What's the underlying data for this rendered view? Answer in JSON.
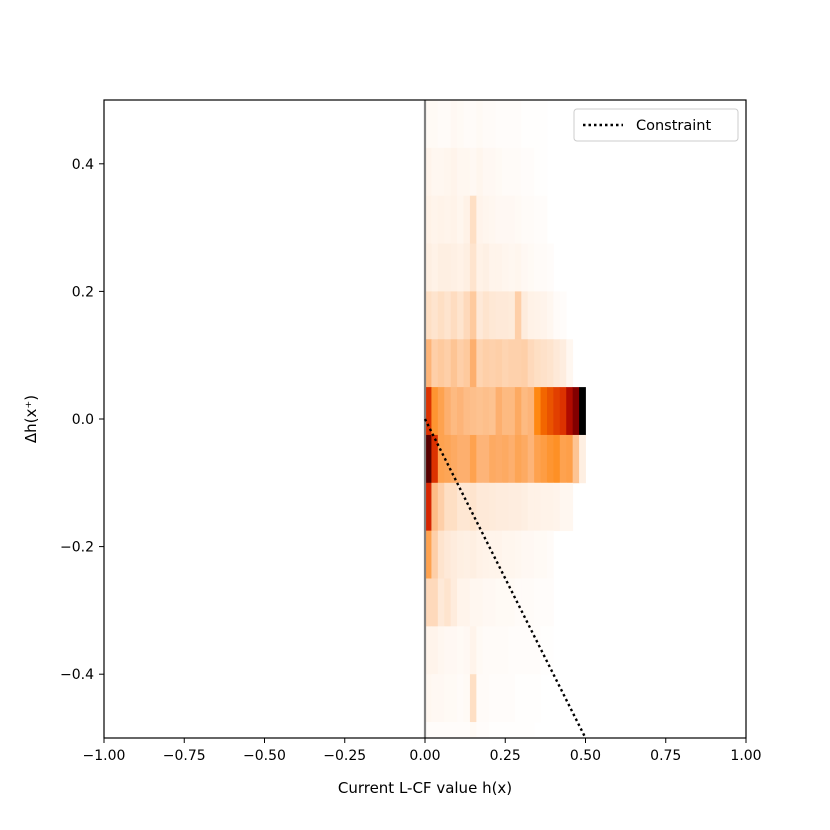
{
  "chart_data": {
    "type": "heatmap",
    "title": "",
    "xlabel": "Current L-CF value h(x)",
    "ylabel": "Δh(x⁺)",
    "xlim": [
      -1.0,
      1.0
    ],
    "ylim": [
      -0.5,
      0.5
    ],
    "x_ticks": [
      -1.0,
      -0.75,
      -0.5,
      -0.25,
      0.0,
      0.25,
      0.5,
      0.75,
      1.0
    ],
    "x_tick_labels": [
      "−1.00",
      "−0.75",
      "−0.50",
      "−0.25",
      "0.00",
      "0.25",
      "0.50",
      "0.75",
      "1.00"
    ],
    "y_ticks": [
      0.4,
      0.2,
      0.0,
      -0.2,
      -0.4
    ],
    "y_tick_labels": [
      "0.4",
      "0.2",
      "0.0",
      "−0.2",
      "−0.4"
    ],
    "colormap": "gist_heat_r",
    "bin_x_start": 0.0,
    "bin_width": 0.02,
    "bin_y_edges": [
      0.5,
      0.425,
      0.35,
      0.275,
      0.2,
      0.125,
      0.05,
      -0.025,
      -0.1,
      -0.175,
      -0.25,
      -0.325,
      -0.4,
      -0.475,
      -0.5
    ],
    "density_rows": [
      [
        0.04,
        0.04,
        0.03,
        0.03,
        0.05,
        0.04,
        0.03,
        0.03,
        0.04,
        0.03,
        0.03,
        0.02,
        0.02,
        0.02,
        0.02,
        0.01,
        0.01,
        0.01,
        0.01,
        0.0,
        0.0,
        0.0,
        0.0,
        0.0,
        0.0
      ],
      [
        0.08,
        0.06,
        0.06,
        0.07,
        0.08,
        0.06,
        0.06,
        0.05,
        0.07,
        0.05,
        0.05,
        0.04,
        0.03,
        0.03,
        0.03,
        0.02,
        0.02,
        0.01,
        0.01,
        0.0,
        0.0,
        0.0,
        0.0,
        0.0,
        0.0
      ],
      [
        0.1,
        0.08,
        0.09,
        0.08,
        0.09,
        0.07,
        0.1,
        0.22,
        0.08,
        0.07,
        0.06,
        0.05,
        0.05,
        0.05,
        0.04,
        0.03,
        0.03,
        0.02,
        0.02,
        0.0,
        0.0,
        0.0,
        0.0,
        0.0,
        0.0
      ],
      [
        0.12,
        0.1,
        0.12,
        0.12,
        0.11,
        0.1,
        0.12,
        0.2,
        0.1,
        0.11,
        0.08,
        0.08,
        0.07,
        0.06,
        0.07,
        0.05,
        0.04,
        0.03,
        0.03,
        0.02,
        0.0,
        0.0,
        0.0,
        0.0,
        0.0
      ],
      [
        0.22,
        0.2,
        0.22,
        0.2,
        0.23,
        0.2,
        0.24,
        0.3,
        0.16,
        0.2,
        0.17,
        0.16,
        0.16,
        0.15,
        0.28,
        0.14,
        0.1,
        0.09,
        0.08,
        0.06,
        0.03,
        0.02,
        0.0,
        0.0,
        0.0
      ],
      [
        0.38,
        0.28,
        0.3,
        0.28,
        0.32,
        0.28,
        0.3,
        0.4,
        0.26,
        0.28,
        0.27,
        0.28,
        0.26,
        0.27,
        0.27,
        0.28,
        0.24,
        0.22,
        0.21,
        0.2,
        0.16,
        0.13,
        0.06,
        0.0,
        0.0
      ],
      [
        0.7,
        0.5,
        0.45,
        0.4,
        0.36,
        0.38,
        0.35,
        0.34,
        0.33,
        0.34,
        0.33,
        0.4,
        0.36,
        0.36,
        0.42,
        0.36,
        0.38,
        0.55,
        0.62,
        0.65,
        0.68,
        0.7,
        0.8,
        0.88,
        1.0
      ],
      [
        0.92,
        0.7,
        0.45,
        0.44,
        0.42,
        0.4,
        0.4,
        0.45,
        0.38,
        0.38,
        0.42,
        0.41,
        0.42,
        0.4,
        0.44,
        0.42,
        0.38,
        0.45,
        0.47,
        0.5,
        0.52,
        0.45,
        0.46,
        0.32,
        0.12
      ],
      [
        0.72,
        0.35,
        0.28,
        0.22,
        0.22,
        0.18,
        0.18,
        0.2,
        0.16,
        0.16,
        0.15,
        0.14,
        0.14,
        0.13,
        0.13,
        0.12,
        0.1,
        0.1,
        0.09,
        0.09,
        0.08,
        0.06,
        0.06,
        0.0,
        0.0
      ],
      [
        0.45,
        0.28,
        0.2,
        0.16,
        0.14,
        0.12,
        0.11,
        0.12,
        0.1,
        0.09,
        0.08,
        0.08,
        0.07,
        0.07,
        0.06,
        0.05,
        0.05,
        0.04,
        0.04,
        0.03,
        0.0,
        0.0,
        0.0,
        0.0,
        0.0
      ],
      [
        0.24,
        0.24,
        0.16,
        0.2,
        0.14,
        0.08,
        0.08,
        0.06,
        0.06,
        0.05,
        0.05,
        0.04,
        0.04,
        0.04,
        0.03,
        0.03,
        0.03,
        0.02,
        0.02,
        0.02,
        0.0,
        0.0,
        0.0,
        0.0,
        0.0
      ],
      [
        0.08,
        0.08,
        0.06,
        0.05,
        0.05,
        0.04,
        0.05,
        0.08,
        0.04,
        0.03,
        0.03,
        0.03,
        0.03,
        0.02,
        0.02,
        0.02,
        0.02,
        0.02,
        0.01,
        0.01,
        0.0,
        0.0,
        0.0,
        0.0,
        0.0
      ],
      [
        0.06,
        0.05,
        0.05,
        0.04,
        0.04,
        0.03,
        0.04,
        0.22,
        0.03,
        0.03,
        0.02,
        0.02,
        0.02,
        0.02,
        0.01,
        0.01,
        0.01,
        0.01,
        0.0,
        0.0,
        0.0,
        0.0,
        0.0,
        0.0,
        0.0
      ],
      [
        0.02,
        0.02,
        0.02,
        0.02,
        0.02,
        0.02,
        0.02,
        0.04,
        0.02,
        0.02,
        0.01,
        0.01,
        0.01,
        0.01,
        0.01,
        0.01,
        0.01,
        0.0,
        0.0,
        0.0,
        0.0,
        0.0,
        0.0,
        0.0,
        0.0
      ]
    ],
    "reference_line": {
      "x": 0.0,
      "color": "#808080"
    },
    "constraint_line": {
      "name": "Constraint",
      "style": "dotted",
      "color": "#000000",
      "x": [
        0.0,
        0.5
      ],
      "y": [
        0.0,
        -0.5
      ]
    },
    "legend": {
      "position": "top-right",
      "entries": [
        "Constraint"
      ]
    },
    "grid": false
  }
}
